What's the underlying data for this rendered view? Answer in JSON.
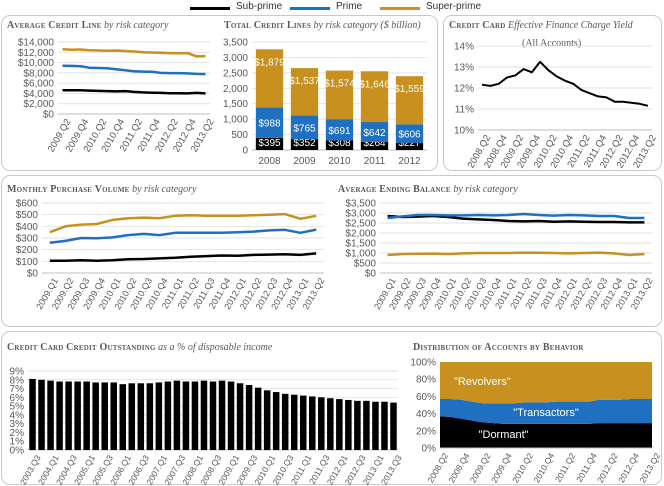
{
  "colors": {
    "subprime": "#000000",
    "prime": "#1f70c1",
    "superprime": "#c8901e",
    "grid": "#d9d9d9",
    "axis_text": "#595959"
  },
  "legend": [
    {
      "label": "Sub-prime",
      "color": "#000000"
    },
    {
      "label": "Prime",
      "color": "#1f70c1"
    },
    {
      "label": "Super-prime",
      "color": "#c8901e"
    }
  ],
  "panels": {
    "avg_credit_line": {
      "title": "Average Credit Line",
      "subtitle": "by risk category"
    },
    "total_credit_lines": {
      "title": "Total Credit Lines",
      "subtitle": "by risk category ($ billion)"
    },
    "finance_charge": {
      "title": "Credit Card",
      "subtitle": "Effective Finance Charge Yield",
      "subtitle2": "(All Accounts)"
    },
    "purchase_volume": {
      "title": "Monthly Purchase Volume",
      "subtitle": "by risk category"
    },
    "ending_balance": {
      "title": "Average Ending Balance",
      "subtitle": "by risk category"
    },
    "outstanding": {
      "title": "Credit Card Credit Outstanding",
      "subtitle": "as a % of disposable income"
    },
    "distribution": {
      "title": "Distribution of Accounts by Behavior",
      "subtitle": ""
    }
  },
  "chart_data": [
    {
      "id": "avg_credit_line",
      "type": "line",
      "x": [
        "2009.Q2",
        "2009.Q3",
        "2009.Q4",
        "2010.Q1",
        "2010.Q2",
        "2010.Q3",
        "2010.Q4",
        "2011.Q1",
        "2011.Q2",
        "2011.Q3",
        "2011.Q4",
        "2012.Q1",
        "2012.Q2",
        "2012.Q3",
        "2012.Q4",
        "2013.Q1",
        "2013.Q2"
      ],
      "xticks": [
        "2009.Q2",
        "2009.Q4",
        "2010.Q2",
        "2010.Q4",
        "2011.Q2",
        "2011.Q4",
        "2012.Q2",
        "2012.Q4",
        "2013.Q2"
      ],
      "yticks": [
        "$0",
        "$2,000",
        "$4,000",
        "$6,000",
        "$8,000",
        "$10,000",
        "$12,000",
        "$14,000"
      ],
      "ylim": [
        0,
        14000
      ],
      "series": [
        {
          "name": "Sub-prime",
          "values": [
            4600,
            4600,
            4600,
            4550,
            4500,
            4450,
            4400,
            4450,
            4300,
            4200,
            4150,
            4100,
            4050,
            4050,
            4000,
            4100,
            4000
          ]
        },
        {
          "name": "Prime",
          "values": [
            9400,
            9350,
            9300,
            9000,
            8950,
            8900,
            8700,
            8500,
            8300,
            8250,
            8200,
            8000,
            7950,
            7950,
            7900,
            7800,
            7750
          ]
        },
        {
          "name": "Super-prime",
          "values": [
            12600,
            12500,
            12550,
            12400,
            12350,
            12300,
            12350,
            12250,
            12150,
            12000,
            11950,
            11900,
            11850,
            11800,
            11850,
            11200,
            11250
          ]
        }
      ]
    },
    {
      "id": "total_credit_lines",
      "type": "bar",
      "categories": [
        "2008",
        "2009",
        "2010",
        "2011",
        "2012"
      ],
      "yticks": [
        "0",
        "500",
        "1,000",
        "1,500",
        "2,000",
        "2,500",
        "3,000",
        "3,500"
      ],
      "ylim": [
        0,
        3500
      ],
      "series": [
        {
          "name": "Sub-prime",
          "values": [
            395,
            352,
            308,
            264,
            227
          ],
          "labels": [
            "$395",
            "$352",
            "$308",
            "$264",
            "$227"
          ]
        },
        {
          "name": "Prime",
          "values": [
            988,
            765,
            691,
            642,
            606
          ],
          "labels": [
            "$988",
            "$765",
            "$691",
            "$642",
            "$606"
          ]
        },
        {
          "name": "Super-prime",
          "values": [
            1879,
            1537,
            1574,
            1646,
            1559
          ],
          "labels": [
            "$1,879",
            "$1,537",
            "$1,574",
            "$1,646",
            "$1,559"
          ]
        }
      ]
    },
    {
      "id": "finance_charge",
      "type": "line",
      "x": [
        "2008.Q2",
        "2008.Q3",
        "2008.Q4",
        "2009.Q1",
        "2009.Q2",
        "2009.Q3",
        "2009.Q4",
        "2010.Q1",
        "2010.Q2",
        "2010.Q3",
        "2010.Q4",
        "2011.Q1",
        "2011.Q2",
        "2011.Q3",
        "2011.Q4",
        "2012.Q1",
        "2012.Q2",
        "2012.Q3",
        "2012.Q4",
        "2013.Q1",
        "2013.Q2"
      ],
      "xticks": [
        "2008.Q2",
        "2008.Q4",
        "2009.Q2",
        "2009.Q4",
        "2010.Q2",
        "2010.Q4",
        "2011.Q2",
        "2011.Q4",
        "2012.Q2",
        "2012.Q4",
        "2013.Q2"
      ],
      "yticks": [
        "10%",
        "11%",
        "12%",
        "13%",
        "14%"
      ],
      "ylim": [
        10,
        14
      ],
      "series": [
        {
          "name": "",
          "values": [
            12.15,
            12.1,
            12.2,
            12.5,
            12.6,
            12.9,
            12.75,
            13.25,
            12.85,
            12.55,
            12.35,
            12.2,
            11.9,
            11.75,
            11.6,
            11.55,
            11.35,
            11.35,
            11.3,
            11.25,
            11.15
          ]
        }
      ]
    },
    {
      "id": "purchase_volume",
      "type": "line",
      "x": [
        "2009.Q1",
        "2009.Q2",
        "2009.Q3",
        "2009.Q4",
        "2010.Q1",
        "2010.Q2",
        "2010.Q3",
        "2010.Q4",
        "2011.Q1",
        "2011.Q2",
        "2011.Q3",
        "2011.Q4",
        "2012.Q1",
        "2012.Q2",
        "2012.Q3",
        "2012.Q4",
        "2013.Q1",
        "2013.Q2"
      ],
      "xticks": [
        "2009.Q1",
        "2009.Q2",
        "2009.Q3",
        "2009.Q4",
        "2010.Q1",
        "2010.Q2",
        "2010.Q3",
        "2010.Q4",
        "2011.Q1",
        "2011.Q2",
        "2011.Q3",
        "2011.Q4",
        "2012.Q1",
        "2012.Q2",
        "2012.Q3",
        "2012.Q4",
        "2013.Q1",
        "2013.Q2"
      ],
      "yticks": [
        "$0",
        "$100",
        "$200",
        "$300",
        "$400",
        "$500",
        "$600"
      ],
      "ylim": [
        0,
        600
      ],
      "series": [
        {
          "name": "Sub-prime",
          "values": [
            105,
            105,
            110,
            105,
            110,
            118,
            120,
            125,
            130,
            140,
            145,
            150,
            148,
            155,
            158,
            160,
            155,
            168
          ]
        },
        {
          "name": "Prime",
          "values": [
            260,
            275,
            300,
            298,
            305,
            325,
            335,
            325,
            345,
            345,
            345,
            345,
            350,
            355,
            365,
            370,
            345,
            372
          ]
        },
        {
          "name": "Super-prime",
          "values": [
            350,
            400,
            415,
            420,
            455,
            470,
            475,
            470,
            490,
            495,
            490,
            490,
            490,
            495,
            500,
            505,
            465,
            490
          ]
        }
      ]
    },
    {
      "id": "ending_balance",
      "type": "line",
      "x": [
        "2009.Q1",
        "2009.Q2",
        "2009.Q3",
        "2009.Q4",
        "2010.Q1",
        "2010.Q2",
        "2010.Q3",
        "2010.Q4",
        "2011.Q1",
        "2011.Q2",
        "2011.Q3",
        "2011.Q4",
        "2012.Q1",
        "2012.Q2",
        "2012.Q3",
        "2012.Q4",
        "2013.Q1",
        "2013.Q2"
      ],
      "xticks": [
        "2009.Q1",
        "2009.Q2",
        "2009.Q3",
        "2009.Q4",
        "2010.Q1",
        "2010.Q2",
        "2010.Q3",
        "2010.Q4",
        "2011.Q1",
        "2011.Q2",
        "2011.Q3",
        "2011.Q4",
        "2012.Q1",
        "2012.Q2",
        "2012.Q3",
        "2012.Q4",
        "2013.Q1",
        "2013.Q2"
      ],
      "yticks": [
        "$0",
        "$500",
        "$1,000",
        "$1,500",
        "$2,000",
        "$2,500",
        "$3,000",
        "$3,500"
      ],
      "ylim": [
        0,
        3500
      ],
      "series": [
        {
          "name": "Sub-prime",
          "values": [
            2850,
            2800,
            2820,
            2850,
            2800,
            2720,
            2680,
            2650,
            2600,
            2580,
            2600,
            2560,
            2580,
            2560,
            2550,
            2550,
            2530,
            2530
          ]
        },
        {
          "name": "Prime",
          "values": [
            2750,
            2830,
            2900,
            2900,
            2880,
            2880,
            2900,
            2880,
            2900,
            2950,
            2900,
            2870,
            2900,
            2880,
            2850,
            2850,
            2750,
            2750
          ]
        },
        {
          "name": "Super-prime",
          "values": [
            900,
            950,
            960,
            970,
            950,
            980,
            1000,
            1000,
            1000,
            1020,
            1010,
            1000,
            980,
            1000,
            1020,
            980,
            900,
            950
          ]
        }
      ]
    },
    {
      "id": "outstanding",
      "type": "bar",
      "categories": [
        "2003.Q3",
        "2003.Q4",
        "2004.Q1",
        "2004.Q2",
        "2004.Q3",
        "2004.Q4",
        "2005.Q1",
        "2005.Q2",
        "2005.Q3",
        "2005.Q4",
        "2006.Q1",
        "2006.Q2",
        "2006.Q3",
        "2006.Q4",
        "2007.Q1",
        "2007.Q2",
        "2007.Q3",
        "2007.Q4",
        "2008.Q1",
        "2008.Q2",
        "2008.Q3",
        "2008.Q4",
        "2009.Q1",
        "2009.Q2",
        "2009.Q3",
        "2009.Q4",
        "2010.Q1",
        "2010.Q2",
        "2010.Q3",
        "2010.Q4",
        "2011.Q1",
        "2011.Q2",
        "2011.Q3",
        "2011.Q4",
        "2012.Q1",
        "2012.Q2",
        "2012.Q3",
        "2012.Q4",
        "2013.Q1",
        "2013.Q2",
        "2013.Q3"
      ],
      "xticks": [
        "2003.Q3",
        "2004.Q1",
        "2004.Q3",
        "2005.Q1",
        "2005.Q3",
        "2006.Q1",
        "2006.Q3",
        "2007.Q1",
        "2007.Q3",
        "2008.Q1",
        "2008.Q3",
        "2009.Q1",
        "2009.Q3",
        "2010.Q1",
        "2010.Q3",
        "2011.Q1",
        "2011.Q3",
        "2012.Q1",
        "2012.Q3",
        "2013.Q1",
        "2013.Q3"
      ],
      "yticks": [
        "0%",
        "1%",
        "2%",
        "3%",
        "4%",
        "5%",
        "6%",
        "7%",
        "8%",
        "9%"
      ],
      "ylim": [
        0,
        9
      ],
      "series": [
        {
          "name": "",
          "values": [
            8.1,
            8.0,
            7.9,
            7.8,
            7.8,
            7.8,
            7.8,
            7.7,
            7.7,
            7.7,
            7.5,
            7.6,
            7.6,
            7.6,
            7.7,
            7.8,
            7.9,
            7.8,
            7.8,
            7.9,
            7.8,
            7.9,
            7.8,
            7.6,
            7.4,
            7.1,
            6.8,
            6.6,
            6.4,
            6.3,
            6.2,
            6.1,
            6.0,
            5.9,
            5.8,
            5.7,
            5.6,
            5.6,
            5.5,
            5.5,
            5.4
          ]
        }
      ]
    },
    {
      "id": "distribution",
      "type": "area",
      "x": [
        "2008.Q2",
        "2008.Q3",
        "2008.Q4",
        "2009.Q1",
        "2009.Q2",
        "2009.Q3",
        "2009.Q4",
        "2010.Q1",
        "2010.Q2",
        "2010.Q3",
        "2010.Q4",
        "2011.Q1",
        "2011.Q2",
        "2011.Q3",
        "2011.Q4",
        "2012.Q1",
        "2012.Q2",
        "2012.Q3",
        "2012.Q4",
        "2013.Q1",
        "2013.Q2"
      ],
      "xticks": [
        "2008.Q2",
        "2008.Q4",
        "2009.Q2",
        "2009.Q4",
        "2010.Q2",
        "2010.Q4",
        "2011.Q2",
        "2011.Q4",
        "2012.Q2",
        "2012.Q4",
        "2013.Q2"
      ],
      "yticks": [
        "0%",
        "20%",
        "40%",
        "60%",
        "80%",
        "100%"
      ],
      "ylim": [
        0,
        100
      ],
      "stacked": true,
      "series": [
        {
          "name": "\"Dormant\"",
          "values": [
            37,
            36,
            34,
            32,
            30,
            29,
            28,
            28,
            28,
            28,
            28,
            28,
            28,
            28,
            28,
            29,
            29,
            29,
            29,
            29,
            29
          ]
        },
        {
          "name": "\"Transactors\"",
          "values": [
            20,
            21,
            22,
            22,
            22,
            23,
            24,
            24,
            25,
            25,
            25,
            26,
            26,
            26,
            26,
            27,
            27,
            27,
            28,
            28,
            28
          ]
        },
        {
          "name": "\"Revolvers\"",
          "values": [
            43,
            43,
            44,
            46,
            48,
            48,
            48,
            48,
            47,
            47,
            47,
            46,
            46,
            46,
            46,
            44,
            44,
            44,
            43,
            43,
            43
          ]
        }
      ]
    }
  ]
}
